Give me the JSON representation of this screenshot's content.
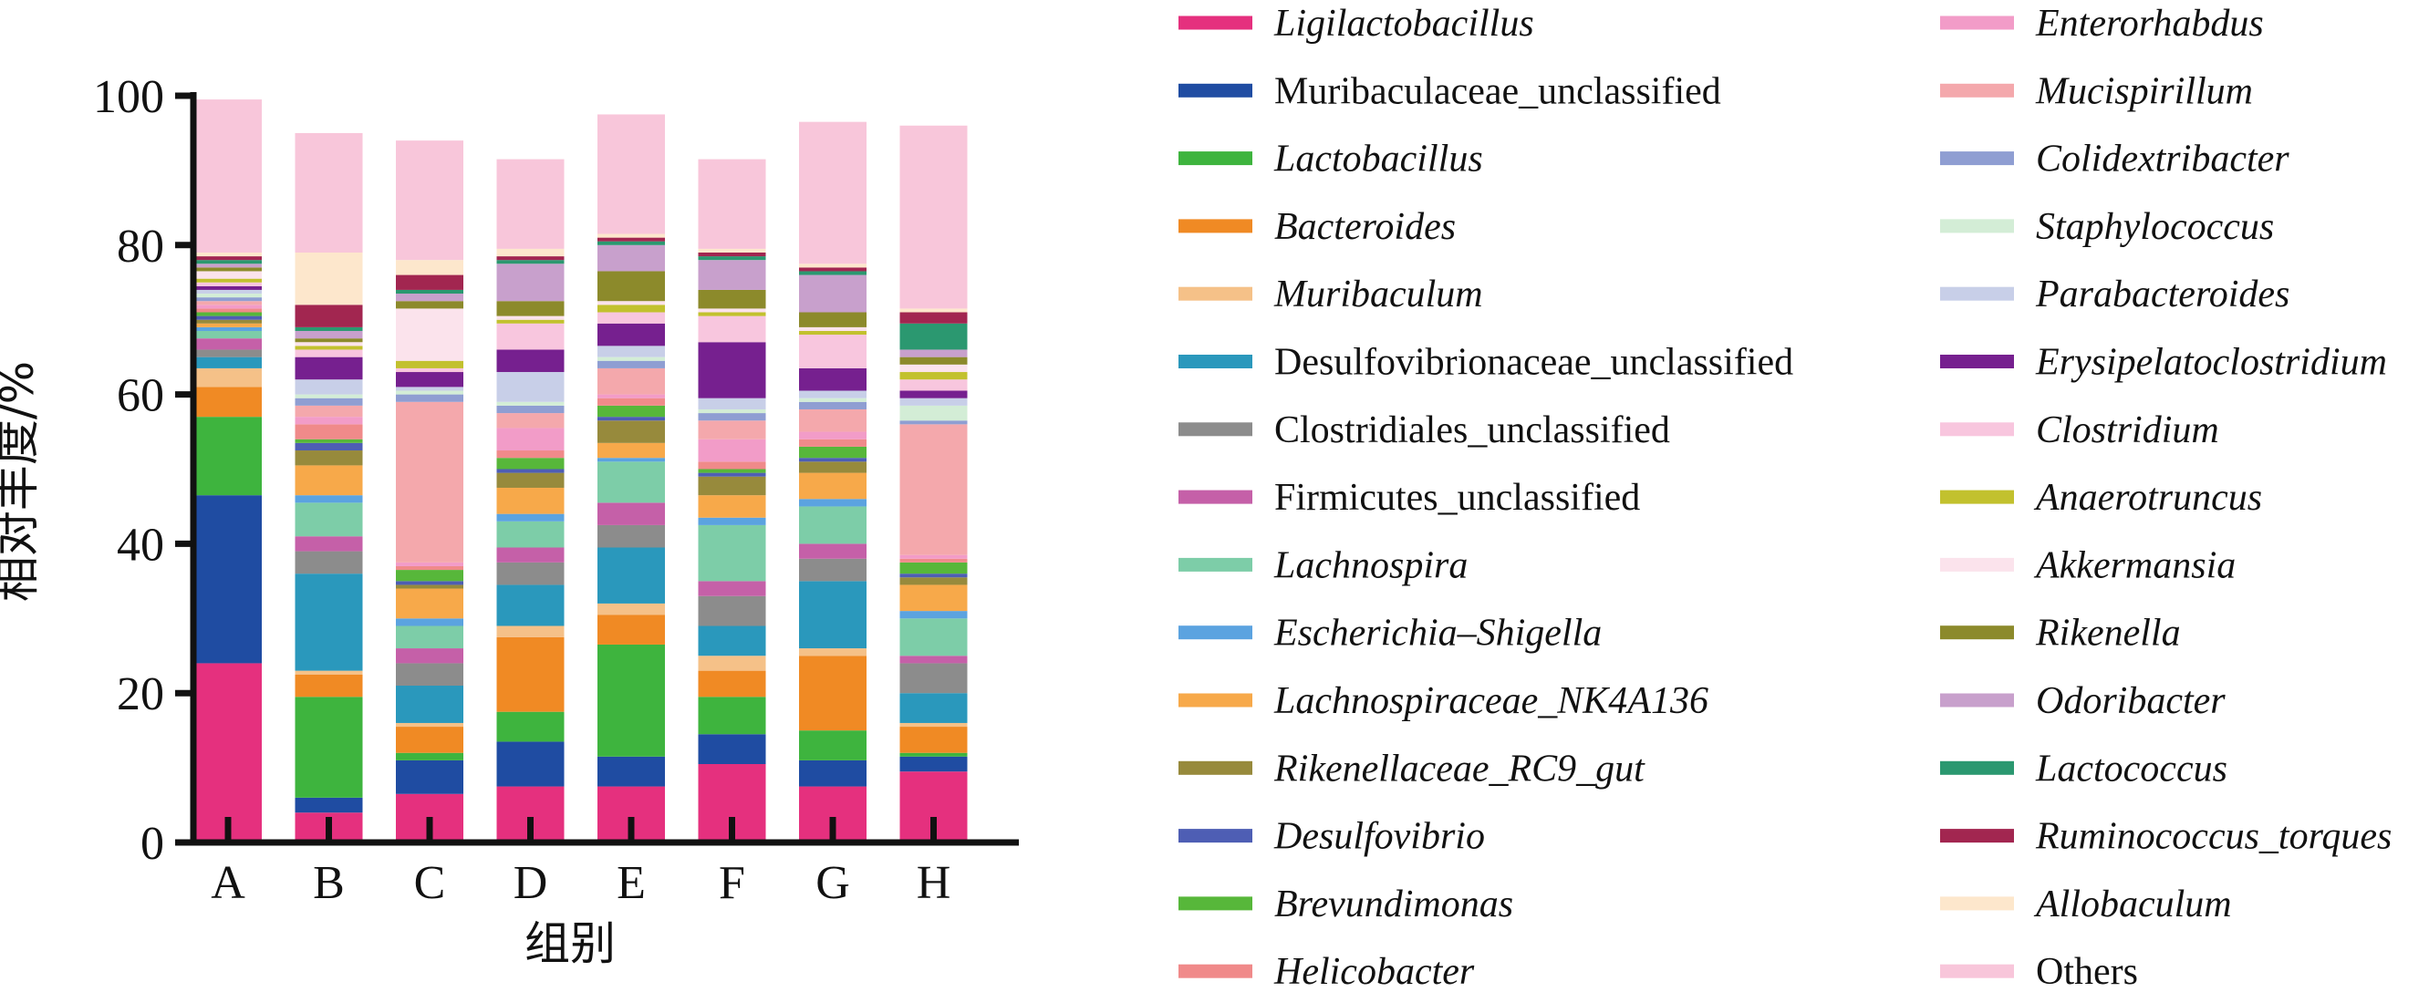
{
  "chart_data": {
    "type": "bar",
    "stacked": true,
    "categories": [
      "A",
      "B",
      "C",
      "D",
      "E",
      "F",
      "G",
      "H"
    ],
    "xlabel": "组别",
    "ylabel": "相对丰度/%",
    "ylim": [
      0,
      100
    ],
    "yticks": [
      0,
      20,
      40,
      60,
      80,
      100
    ],
    "grid": false,
    "legend_position": "right",
    "series": [
      {
        "name": "Ligilactobacillus",
        "italic": true,
        "color": "#E5307E",
        "values": [
          24,
          4,
          6.5,
          7.5,
          7.5,
          10.5,
          7.5,
          9.5
        ]
      },
      {
        "name": "Muribaculaceae_unclassified",
        "italic": false,
        "color": "#1F4CA2",
        "values": [
          22.5,
          2,
          4.5,
          6,
          4,
          4,
          3.5,
          2
        ]
      },
      {
        "name": "Lactobacillus",
        "italic": true,
        "color": "#3EB43E",
        "values": [
          10.5,
          13.5,
          1,
          4,
          15,
          5,
          4,
          0.5
        ]
      },
      {
        "name": "Bacteroides",
        "italic": true,
        "color": "#F08A24",
        "values": [
          4,
          3,
          3.5,
          10,
          4,
          3.5,
          10,
          3.5
        ]
      },
      {
        "name": "Muribaculum",
        "italic": true,
        "color": "#F5C188",
        "values": [
          2.5,
          0.5,
          0.5,
          1.5,
          1.5,
          2,
          1,
          0.5
        ]
      },
      {
        "name": "Desulfovibrionaceae_unclassified",
        "italic": false,
        "color": "#2A98BC",
        "values": [
          1.5,
          13,
          5,
          5.5,
          7.5,
          4,
          9,
          4
        ]
      },
      {
        "name": "Clostridiales_unclassified",
        "italic": false,
        "color": "#8C8C8C",
        "values": [
          1,
          3,
          3,
          3,
          3,
          4,
          3,
          4
        ]
      },
      {
        "name": "Firmicutes_unclassified",
        "italic": false,
        "color": "#C560A8",
        "values": [
          1.5,
          2,
          2,
          2,
          3,
          2,
          2,
          1
        ]
      },
      {
        "name": "Lachnospira",
        "italic": true,
        "color": "#7DCDA8",
        "values": [
          1,
          4.5,
          3,
          3.5,
          5.5,
          7.5,
          5,
          5
        ]
      },
      {
        "name": "Escherichia–Shigella",
        "italic": true,
        "color": "#5BA3E0",
        "values": [
          0.5,
          1,
          1,
          1,
          0.5,
          1,
          1,
          1
        ]
      },
      {
        "name": "Lachnospiraceae_NK4A136",
        "italic": true,
        "color": "#F7A94A",
        "values": [
          0.5,
          4,
          4,
          3.5,
          2,
          3,
          3.5,
          3.5
        ]
      },
      {
        "name": "Rikenellaceae_RC9_gut",
        "italic": true,
        "color": "#978A3C",
        "values": [
          0.5,
          2,
          0.5,
          2,
          3,
          2.5,
          1.5,
          1
        ]
      },
      {
        "name": "Desulfovibrio",
        "italic": true,
        "color": "#4E5EB4",
        "values": [
          0.5,
          1,
          0.5,
          0.5,
          0.5,
          0.5,
          0.5,
          0.5
        ]
      },
      {
        "name": "Brevundimonas",
        "italic": true,
        "color": "#57B73A",
        "values": [
          0.5,
          0.5,
          1.5,
          1.5,
          1.5,
          0.5,
          1.5,
          1.5
        ]
      },
      {
        "name": "Helicobacter",
        "italic": true,
        "color": "#F08A8A",
        "values": [
          0.5,
          2,
          0.5,
          1,
          1,
          1,
          1,
          0.5
        ]
      },
      {
        "name": "Enterorhabdus",
        "italic": true,
        "color": "#F29CC8",
        "values": [
          0.5,
          1,
          0.5,
          3,
          0.5,
          3,
          1,
          0.5
        ]
      },
      {
        "name": "Mucispirillum",
        "italic": true,
        "color": "#F4A8AC",
        "values": [
          0.5,
          1.5,
          21.5,
          2,
          3.5,
          2.5,
          3,
          17.5
        ]
      },
      {
        "name": "Colidextribacter",
        "italic": true,
        "color": "#8F9ED2",
        "values": [
          0.5,
          1,
          1,
          1,
          1,
          1,
          1,
          0.5
        ]
      },
      {
        "name": "Staphylococcus",
        "italic": true,
        "color": "#D3EDD6",
        "values": [
          0.5,
          0.5,
          0.5,
          0.5,
          0.5,
          0.5,
          0.5,
          2
        ]
      },
      {
        "name": "Parabacteroides",
        "italic": true,
        "color": "#C8CFE8",
        "values": [
          0.5,
          2,
          0.5,
          4,
          1.5,
          1.5,
          1,
          1
        ]
      },
      {
        "name": "Erysipelatoclostridium",
        "italic": true,
        "color": "#76208F",
        "values": [
          0.5,
          3,
          2,
          3,
          3,
          7.5,
          3,
          1
        ]
      },
      {
        "name": "Clostridium",
        "italic": true,
        "color": "#F8C6DE",
        "values": [
          0.5,
          1,
          0.5,
          3.5,
          1.5,
          3.5,
          4.5,
          1.5
        ]
      },
      {
        "name": "Anaerotruncus",
        "italic": true,
        "color": "#C2C12E",
        "values": [
          0.5,
          0.5,
          1,
          0.5,
          1,
          0.5,
          0.5,
          1
        ]
      },
      {
        "name": "Akkermansia",
        "italic": true,
        "color": "#FBE3EC",
        "values": [
          1,
          0.5,
          7,
          0.5,
          0.5,
          0.5,
          0.5,
          1
        ]
      },
      {
        "name": "Rikenella",
        "italic": true,
        "color": "#8C8A2B",
        "values": [
          0.5,
          0.5,
          1,
          2,
          4,
          2.5,
          2,
          1
        ]
      },
      {
        "name": "Odoribacter",
        "italic": true,
        "color": "#C8A0CC",
        "values": [
          0.5,
          1,
          1,
          5,
          3.5,
          4,
          5,
          1
        ]
      },
      {
        "name": "Lactococcus",
        "italic": true,
        "color": "#2B9870",
        "values": [
          0.5,
          0.5,
          0.5,
          0.5,
          0.5,
          0.5,
          0.5,
          3.5
        ]
      },
      {
        "name": "Ruminococcus_torques",
        "italic": true,
        "color": "#A22650",
        "values": [
          0.5,
          3,
          2,
          0.5,
          0.5,
          0.5,
          0.5,
          1.5
        ]
      },
      {
        "name": "Allobaculum",
        "italic": true,
        "color": "#FDE7CC",
        "values": [
          0.5,
          7,
          2,
          1,
          0.5,
          0.5,
          0.5,
          0.5
        ]
      },
      {
        "name": "Others",
        "italic": false,
        "color": "#F8C6DA",
        "values": [
          20.5,
          16,
          16,
          12,
          16,
          12,
          19,
          24.5
        ]
      }
    ]
  }
}
